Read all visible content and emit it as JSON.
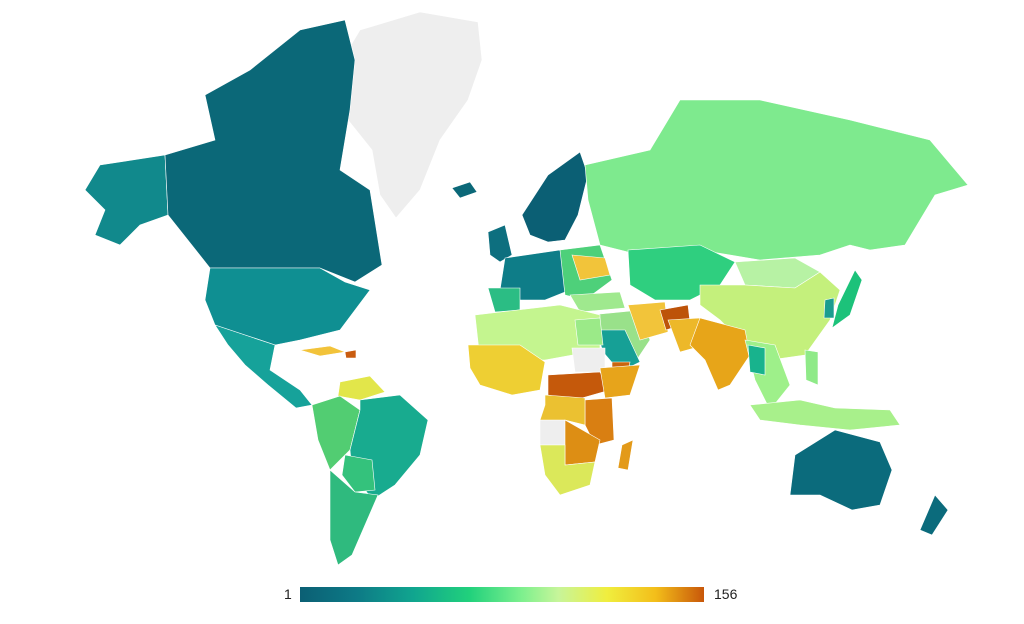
{
  "legend": {
    "min_label": "1",
    "max_label": "156",
    "colors": [
      "#0b5f74",
      "#0d7a86",
      "#10a58f",
      "#21d17c",
      "#7ef08e",
      "#c7f59a",
      "#f0ee3e",
      "#f3be1a",
      "#c8570a"
    ]
  },
  "colors": {
    "background": "#ffffff",
    "no_data": "#eeeeee",
    "rank_high": "#0b5f74",
    "rank_low": "#c8570a"
  }
}
